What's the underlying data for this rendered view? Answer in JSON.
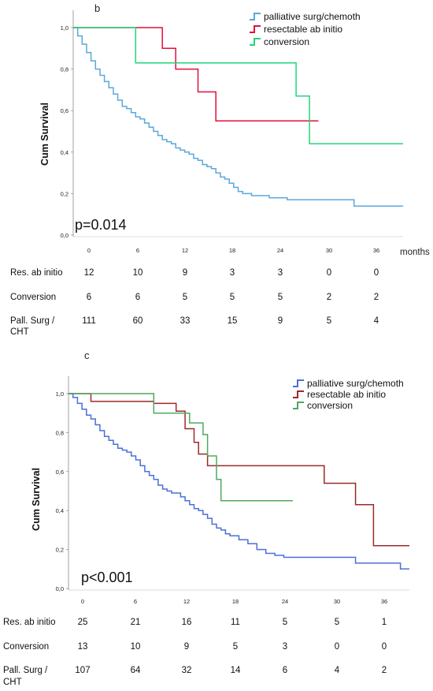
{
  "chart_data": [
    {
      "type": "line",
      "panel": "b",
      "ylabel": "Cum Survival",
      "xlabel": "months",
      "annotation": "p=0.014",
      "ylim": [
        0,
        1
      ],
      "xlim": [
        0,
        37
      ],
      "yticks": [
        "0,0",
        "0,2",
        "0,4",
        "0,6",
        "0,8",
        "1,0"
      ],
      "xticks": [
        "0",
        "6",
        "12",
        "18",
        "24",
        "30",
        "36"
      ],
      "legend_position": "top-right",
      "series": [
        {
          "name": "palliative surg/chemoth",
          "color": "#5aa8dc",
          "x": [
            0,
            0.5,
            1,
            1.5,
            2,
            2.5,
            3,
            3.5,
            4,
            4.5,
            5,
            5.5,
            6,
            6.5,
            7,
            7.5,
            8,
            8.5,
            9,
            9.5,
            10,
            10.5,
            11,
            11.5,
            12,
            12.5,
            13,
            13.5,
            14,
            14.5,
            15,
            15.5,
            16,
            16.5,
            17,
            17.5,
            18,
            18.5,
            19,
            20,
            21,
            22,
            23,
            24,
            27,
            31.5,
            33,
            37
          ],
          "y": [
            1.0,
            0.96,
            0.92,
            0.88,
            0.84,
            0.8,
            0.77,
            0.74,
            0.71,
            0.68,
            0.65,
            0.62,
            0.61,
            0.59,
            0.57,
            0.56,
            0.54,
            0.52,
            0.5,
            0.48,
            0.46,
            0.45,
            0.44,
            0.42,
            0.41,
            0.4,
            0.39,
            0.37,
            0.36,
            0.34,
            0.33,
            0.32,
            0.3,
            0.28,
            0.27,
            0.25,
            0.23,
            0.21,
            0.2,
            0.19,
            0.19,
            0.18,
            0.18,
            0.17,
            0.17,
            0.14,
            0.14,
            0.14
          ]
        },
        {
          "name": "resectable ab initio",
          "color": "#e0103a",
          "x": [
            0,
            8.5,
            10,
            11.5,
            14,
            16,
            27.5
          ],
          "y": [
            1.0,
            1.0,
            0.9,
            0.8,
            0.69,
            0.55,
            0.55
          ]
        },
        {
          "name": "conversion",
          "color": "#22d67a",
          "x": [
            0,
            7,
            23,
            25,
            26.5,
            37
          ],
          "y": [
            1.0,
            0.83,
            0.83,
            0.67,
            0.44,
            0.44
          ]
        }
      ],
      "risk_table": {
        "rows": [
          {
            "label": "Res. ab initio",
            "values": [
              "12",
              "10",
              "9",
              "3",
              "3",
              "0",
              "0"
            ]
          },
          {
            "label": "Conversion",
            "values": [
              "6",
              "6",
              "5",
              "5",
              "5",
              "2",
              "2"
            ]
          },
          {
            "label": "Pall. Surg /",
            "label2": "CHT",
            "values": [
              "111",
              "60",
              "33",
              "15",
              "9",
              "5",
              "4"
            ]
          }
        ]
      }
    },
    {
      "type": "line",
      "panel": "c",
      "ylabel": "Cum Survival",
      "annotation": "p<0.001",
      "ylim": [
        0,
        1
      ],
      "xlim": [
        0,
        38
      ],
      "yticks": [
        "0,0",
        "0,2",
        "0,4",
        "0,6",
        "0,8",
        "1,0"
      ],
      "xticks": [
        "0",
        "6",
        "12",
        "18",
        "24",
        "30",
        "36"
      ],
      "legend_position": "top-right",
      "series": [
        {
          "name": "palliative surg/chemoth",
          "color": "#4a70d8",
          "x": [
            0,
            0.5,
            1,
            1.5,
            2,
            2.5,
            3,
            3.5,
            4,
            4.5,
            5,
            5.5,
            6,
            6.5,
            7,
            7.5,
            8,
            8.5,
            9,
            9.5,
            10,
            10.5,
            11,
            11.5,
            12,
            12.5,
            13,
            13.5,
            14,
            14.5,
            15,
            15.5,
            16,
            16.5,
            17,
            17.5,
            18,
            19,
            20,
            21,
            22,
            23,
            24,
            27,
            31,
            32,
            35,
            37,
            38
          ],
          "y": [
            1.0,
            0.98,
            0.95,
            0.92,
            0.89,
            0.87,
            0.84,
            0.81,
            0.78,
            0.76,
            0.74,
            0.72,
            0.71,
            0.7,
            0.68,
            0.66,
            0.63,
            0.6,
            0.58,
            0.56,
            0.53,
            0.51,
            0.5,
            0.49,
            0.49,
            0.47,
            0.45,
            0.43,
            0.41,
            0.4,
            0.38,
            0.36,
            0.33,
            0.31,
            0.3,
            0.28,
            0.27,
            0.25,
            0.23,
            0.2,
            0.18,
            0.17,
            0.16,
            0.16,
            0.16,
            0.13,
            0.13,
            0.1,
            0.1
          ]
        },
        {
          "name": "resectable ab initio",
          "color": "#9c2a2a",
          "x": [
            0,
            2.5,
            9.5,
            12,
            13,
            14,
            14.5,
            15.5,
            23,
            28.5,
            32,
            34,
            38
          ],
          "y": [
            1.0,
            0.96,
            0.95,
            0.91,
            0.82,
            0.75,
            0.69,
            0.63,
            0.63,
            0.54,
            0.43,
            0.22,
            0.22
          ]
        },
        {
          "name": "conversion",
          "color": "#4fa860",
          "x": [
            0,
            9.5,
            13.5,
            15,
            15.5,
            16.5,
            17,
            25
          ],
          "y": [
            1.0,
            0.9,
            0.85,
            0.79,
            0.68,
            0.56,
            0.45,
            0.45
          ]
        }
      ],
      "risk_table": {
        "rows": [
          {
            "label": "Res. ab initio",
            "values": [
              "25",
              "21",
              "16",
              "11",
              "5",
              "5",
              "1"
            ]
          },
          {
            "label": "Conversion",
            "values": [
              "13",
              "10",
              "9",
              "5",
              "3",
              "0",
              "0"
            ]
          },
          {
            "label": "Pall. Surg /",
            "label2": "CHT",
            "values": [
              "107",
              "64",
              "32",
              "14",
              "6",
              "4",
              "2"
            ]
          }
        ]
      }
    }
  ]
}
